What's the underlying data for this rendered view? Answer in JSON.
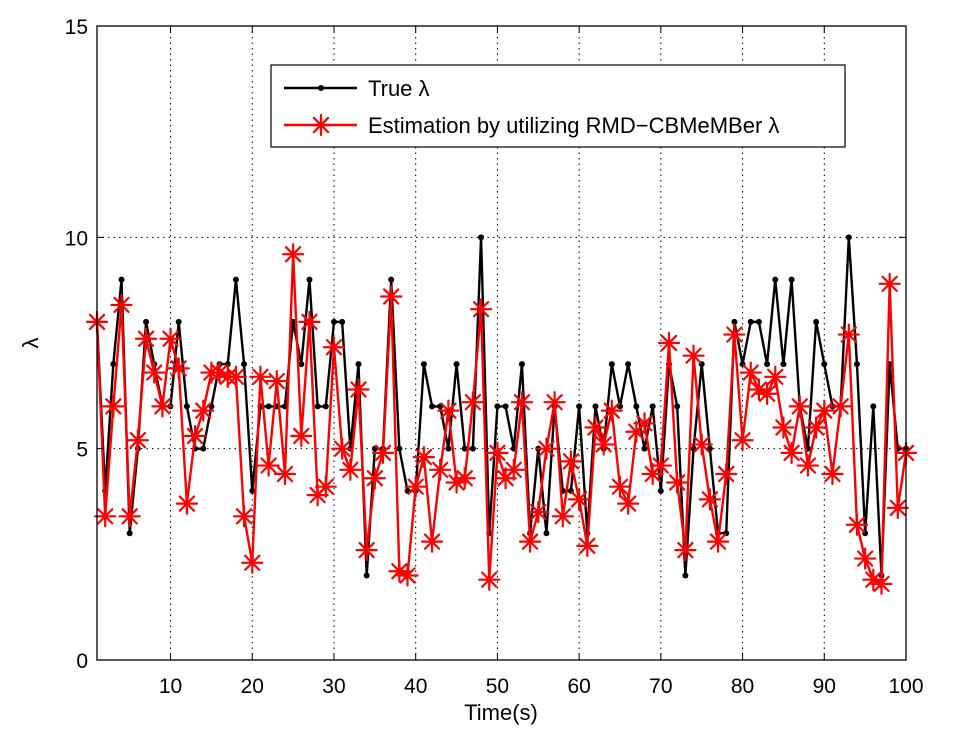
{
  "chart_data": {
    "type": "line",
    "title": "",
    "xlabel": "Time(s)",
    "ylabel": "λ",
    "xlim": [
      1,
      100
    ],
    "ylim": [
      0,
      15
    ],
    "xticks": [
      10,
      20,
      30,
      40,
      50,
      60,
      70,
      80,
      90,
      100
    ],
    "yticks": [
      0,
      5,
      10,
      15
    ],
    "grid": true,
    "legend_position": "top-center",
    "x": [
      1,
      2,
      3,
      4,
      5,
      6,
      7,
      8,
      9,
      10,
      11,
      12,
      13,
      14,
      15,
      16,
      17,
      18,
      19,
      20,
      21,
      22,
      23,
      24,
      25,
      26,
      27,
      28,
      29,
      30,
      31,
      32,
      33,
      34,
      35,
      36,
      37,
      38,
      39,
      40,
      41,
      42,
      43,
      44,
      45,
      46,
      47,
      48,
      49,
      50,
      51,
      52,
      53,
      54,
      55,
      56,
      57,
      58,
      59,
      60,
      61,
      62,
      63,
      64,
      65,
      66,
      67,
      68,
      69,
      70,
      71,
      72,
      73,
      74,
      75,
      76,
      77,
      78,
      79,
      80,
      81,
      82,
      83,
      84,
      85,
      86,
      87,
      88,
      89,
      90,
      91,
      92,
      93,
      94,
      95,
      96,
      97,
      98,
      99,
      100
    ],
    "series": [
      {
        "name": "True λ",
        "color": "#000000",
        "marker": "dot",
        "values": [
          8,
          4,
          7,
          9,
          3,
          5,
          8,
          7,
          6,
          6,
          8,
          6,
          5,
          5,
          6,
          7,
          7,
          9,
          7,
          4,
          6,
          6,
          6,
          6,
          8,
          7,
          9,
          6,
          6,
          8,
          8,
          5,
          7,
          2,
          5,
          5,
          9,
          5,
          4,
          4,
          7,
          6,
          6,
          5,
          7,
          5,
          5,
          10,
          3,
          6,
          6,
          5,
          7,
          3,
          5,
          3,
          6,
          4,
          4,
          6,
          3,
          6,
          5,
          7,
          6,
          7,
          6,
          5,
          6,
          4,
          7,
          6,
          2,
          5,
          7,
          5,
          3,
          3,
          8,
          7,
          8,
          8,
          7,
          9,
          7,
          9,
          6,
          5,
          8,
          7,
          6,
          6,
          10,
          7,
          3,
          6,
          2,
          7,
          5,
          5
        ]
      },
      {
        "name": "Estimation by utilizing RMD−CBMeMBer  λ",
        "color": "#ff0000",
        "marker": "star",
        "values": [
          8.0,
          3.4,
          6.0,
          8.4,
          3.4,
          5.2,
          7.6,
          6.8,
          6.0,
          7.6,
          6.9,
          3.7,
          5.3,
          5.9,
          6.8,
          6.8,
          6.7,
          6.7,
          3.4,
          2.3,
          6.7,
          4.6,
          6.6,
          4.4,
          9.6,
          5.3,
          8.0,
          3.9,
          4.1,
          7.4,
          5.0,
          4.5,
          6.4,
          2.6,
          4.3,
          4.9,
          8.6,
          2.1,
          2.0,
          4.1,
          4.8,
          2.8,
          4.5,
          5.9,
          4.2,
          4.3,
          6.1,
          8.3,
          1.9,
          4.9,
          4.3,
          4.5,
          6.1,
          2.8,
          3.5,
          5.0,
          6.1,
          3.4,
          4.7,
          3.8,
          2.7,
          5.5,
          5.1,
          5.9,
          4.1,
          3.7,
          5.4,
          5.6,
          4.4,
          4.6,
          7.5,
          4.2,
          2.6,
          7.2,
          5.1,
          3.8,
          2.8,
          4.4,
          7.7,
          5.2,
          6.8,
          6.4,
          6.3,
          6.7,
          5.5,
          4.9,
          6.0,
          4.6,
          5.5,
          5.9,
          4.4,
          6.0,
          7.7,
          3.2,
          2.4,
          1.9,
          1.8,
          8.9,
          3.6,
          4.9
        ]
      }
    ]
  }
}
